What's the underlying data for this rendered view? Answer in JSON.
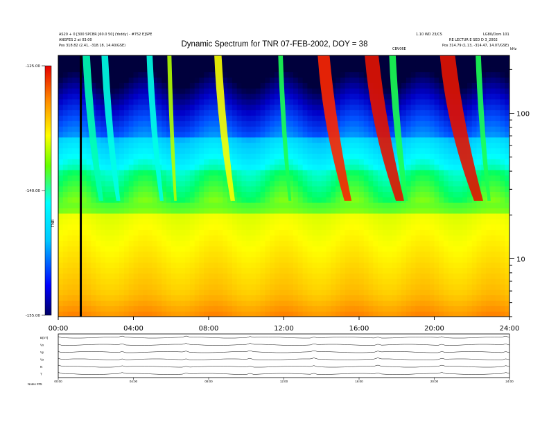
{
  "header": {
    "left_line1": "AS20 + 0 [300 SPCBR [60.0 50] (Yoddy) - #752 E]SPE",
    "left_line2": "ANGFES 2 at 03:00",
    "left_line3": "Pos    318.82 (2.41, -318.18, 14.40/GSE)",
    "right_line1": "1.10 WD 23/CS",
    "right_line2": "LG80/Dom 101",
    "right_line3": "RE LECTUR E SED D 3_2002",
    "right_line4": "Pos    314.79 (1.13, -314.47, 14.07/GSE)",
    "small_center": "CBV06E",
    "unit": "kHz"
  },
  "chart_data": {
    "type": "heatmap",
    "title": "Dynamic Spectrum for TNR 07-FEB-2002, DOY = 38",
    "xlim": [
      0,
      24
    ],
    "x_tick_labels": [
      "00:00",
      "04:00",
      "08:00",
      "12:00",
      "16:00",
      "20:00",
      "24:00"
    ],
    "x_ticks": [
      0,
      4,
      8,
      12,
      16,
      20,
      24
    ],
    "y_scale": "log",
    "ylim": [
      4,
      250
    ],
    "y_ticks": [
      10,
      100
    ],
    "y_tick_labels": [
      "10",
      "100"
    ],
    "colorbar": {
      "label": "TNR",
      "range": [
        -155,
        -125
      ],
      "tick_labels": [
        "-125.00",
        "-140.00",
        "-155.00"
      ],
      "tick_values": [
        -125,
        -140,
        -155
      ]
    },
    "colormap": [
      "#000000",
      "#0000c8",
      "#0050ff",
      "#00c8ff",
      "#00ffff",
      "#00ff64",
      "#a0ff00",
      "#ffff00",
      "#ff9600",
      "#ff2800",
      "#c00000"
    ],
    "type_iii_bursts": [
      {
        "t_start": 1.3,
        "f_high": 250,
        "t_end": 2.4,
        "intensity": -140
      },
      {
        "t_start": 2.3,
        "f_high": 250,
        "t_end": 3.3,
        "intensity": -141
      },
      {
        "t_start": 4.7,
        "f_high": 250,
        "t_end": 5.6,
        "intensity": -141
      },
      {
        "t_start": 5.8,
        "f_high": 250,
        "t_end": 6.3,
        "intensity": -135
      },
      {
        "t_start": 8.3,
        "f_high": 250,
        "t_end": 9.4,
        "intensity": -133
      },
      {
        "t_start": 11.7,
        "f_high": 250,
        "t_end": 12.4,
        "intensity": -138
      },
      {
        "t_start": 13.8,
        "f_high": 250,
        "t_end": 15.6,
        "intensity": -127
      },
      {
        "t_start": 16.3,
        "f_high": 250,
        "t_end": 18.4,
        "intensity": -126
      },
      {
        "t_start": 17.6,
        "f_high": 250,
        "t_end": 18.6,
        "intensity": -138
      },
      {
        "t_start": 20.3,
        "f_high": 250,
        "t_end": 22.6,
        "intensity": -126
      },
      {
        "t_start": 22.2,
        "f_high": 250,
        "t_end": 23.0,
        "intensity": -138
      }
    ],
    "data_gap": {
      "t": 1.2,
      "color": "#000000"
    },
    "bottom_panel": {
      "row_labels": [
        "B(nT)",
        "Vx",
        "Vy",
        "Vz",
        "N",
        "T"
      ],
      "x_tick_labels": [
        "00:00",
        "04:00",
        "08:00",
        "12:00",
        "16:00",
        "20:00",
        "24:00"
      ],
      "footer": "Notes  ##5"
    }
  }
}
